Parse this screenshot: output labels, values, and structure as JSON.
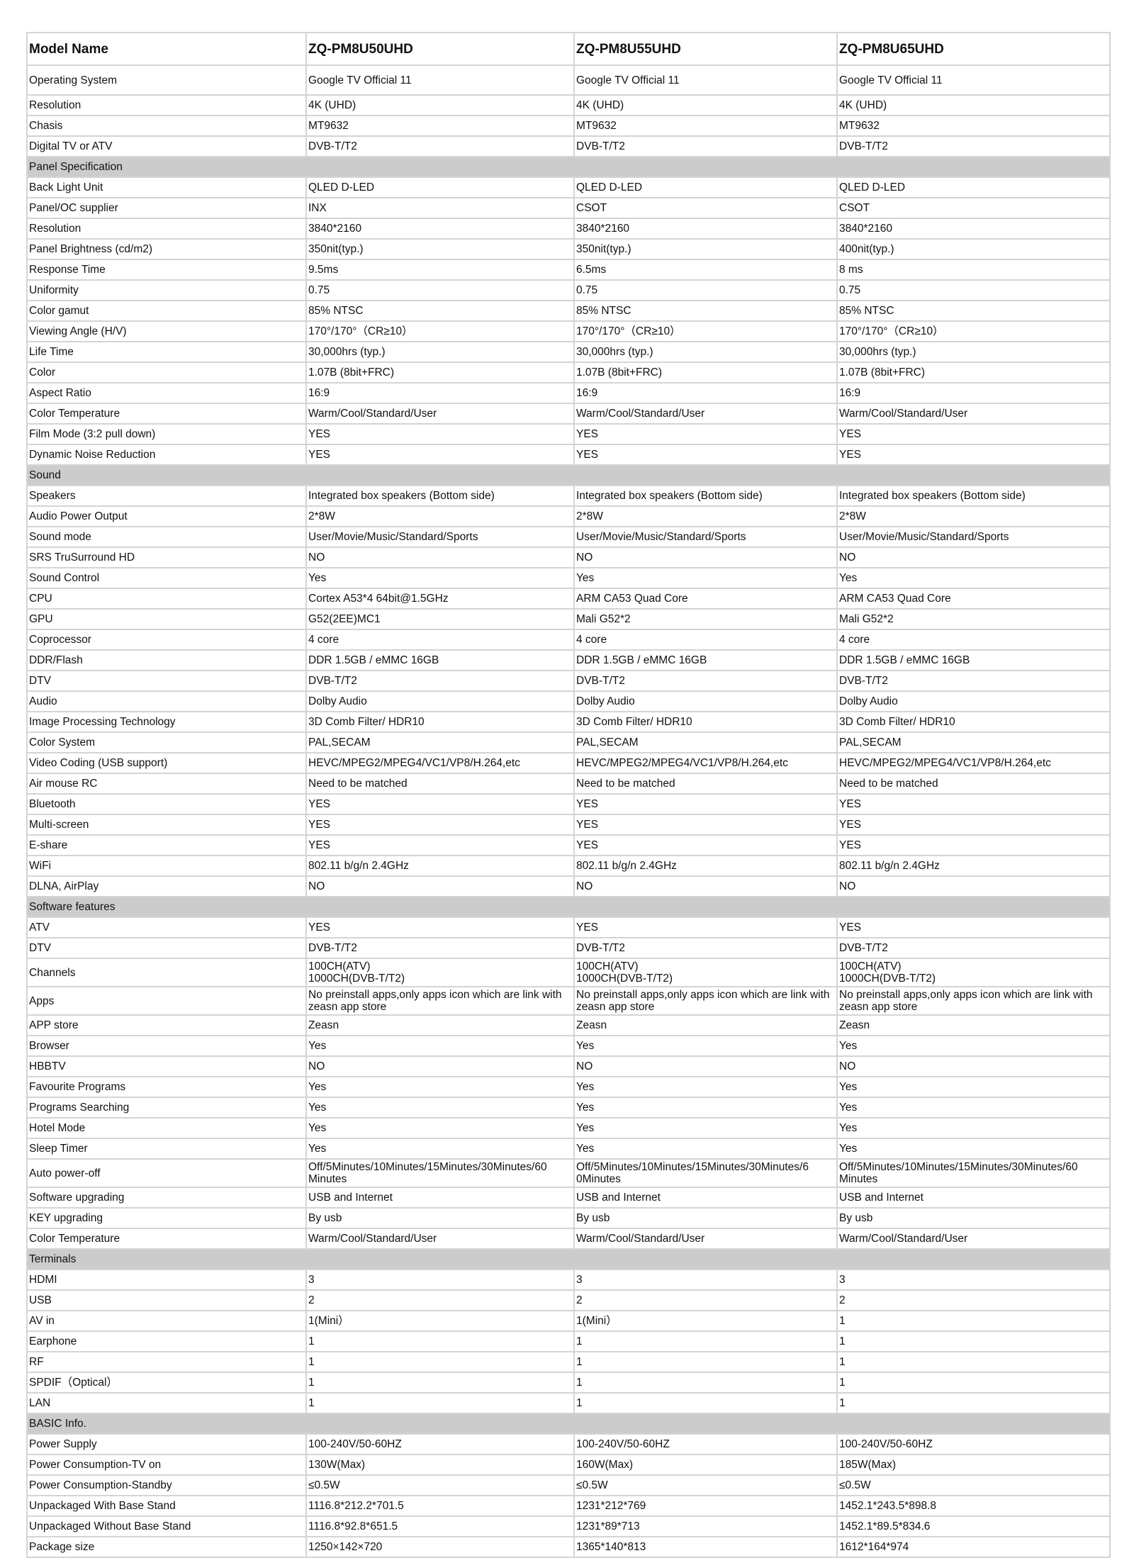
{
  "header": {
    "label": "Model Name",
    "models": [
      "ZQ-PM8U50UHD",
      "ZQ-PM8U55UHD",
      "ZQ-PM8U65UHD"
    ]
  },
  "rows": [
    {
      "label": "Operating System",
      "values": [
        "Google TV Official 11",
        "Google TV Official 11",
        "Google TV Official 11"
      ]
    },
    {
      "label": "Resolution",
      "values": [
        "4K (UHD)",
        "4K (UHD)",
        "4K (UHD)"
      ]
    },
    {
      "label": "Chasis",
      "values": [
        "MT9632",
        "MT9632",
        "MT9632"
      ]
    },
    {
      "label": "Digital TV or ATV",
      "values": [
        "DVB-T/T2",
        "DVB-T/T2",
        "DVB-T/T2"
      ]
    },
    {
      "section": "Panel Specification"
    },
    {
      "label": "Back Light Unit",
      "values": [
        "QLED D-LED",
        "QLED D-LED",
        "QLED D-LED"
      ]
    },
    {
      "label": "Panel/OC supplier",
      "values": [
        "INX",
        "CSOT",
        "CSOT"
      ]
    },
    {
      "label": "Resolution",
      "values": [
        "3840*2160",
        "3840*2160",
        "3840*2160"
      ]
    },
    {
      "label": "Panel Brightness (cd/m2)",
      "values": [
        "350nit(typ.)",
        "350nit(typ.)",
        "400nit(typ.)"
      ]
    },
    {
      "label": "Response Time",
      "values": [
        "9.5ms",
        "6.5ms",
        "8 ms"
      ]
    },
    {
      "label": "Uniformity",
      "values": [
        "0.75",
        "0.75",
        "0.75"
      ]
    },
    {
      "label": "Color gamut",
      "values": [
        "85% NTSC",
        "85% NTSC",
        "85% NTSC"
      ]
    },
    {
      "label": "Viewing Angle (H/V)",
      "values": [
        "170°/170°（CR≥10）",
        "170°/170°（CR≥10）",
        "170°/170°（CR≥10）"
      ]
    },
    {
      "label": "Life Time",
      "values": [
        "30,000hrs (typ.)",
        "30,000hrs (typ.)",
        "30,000hrs (typ.)"
      ]
    },
    {
      "label": "Color",
      "values": [
        "1.07B (8bit+FRC)",
        "1.07B (8bit+FRC)",
        "1.07B (8bit+FRC)"
      ]
    },
    {
      "label": "Aspect Ratio",
      "values": [
        "16:9",
        "16:9",
        "16:9"
      ]
    },
    {
      "label": "Color Temperature",
      "values": [
        "Warm/Cool/Standard/User",
        "Warm/Cool/Standard/User",
        "Warm/Cool/Standard/User"
      ]
    },
    {
      "label": "Film Mode (3:2 pull down)",
      "values": [
        "YES",
        "YES",
        "YES"
      ]
    },
    {
      "label": "Dynamic Noise Reduction",
      "values": [
        "YES",
        "YES",
        "YES"
      ]
    },
    {
      "section": "Sound"
    },
    {
      "label": "Speakers",
      "values": [
        "Integrated box speakers (Bottom side)",
        "Integrated box speakers (Bottom side)",
        "Integrated box speakers (Bottom side)"
      ]
    },
    {
      "label": "Audio Power Output",
      "values": [
        "2*8W",
        "2*8W",
        "2*8W"
      ]
    },
    {
      "label": "Sound mode",
      "values": [
        "User/Movie/Music/Standard/Sports",
        "User/Movie/Music/Standard/Sports",
        "User/Movie/Music/Standard/Sports"
      ]
    },
    {
      "label": "SRS TruSurround HD",
      "values": [
        "NO",
        "NO",
        "NO"
      ]
    },
    {
      "label": "Sound Control",
      "values": [
        "Yes",
        "Yes",
        "Yes"
      ]
    },
    {
      "label": "CPU",
      "values": [
        "Cortex A53*4 64bit@1.5GHz",
        "ARM CA53 Quad Core",
        "ARM CA53 Quad Core"
      ]
    },
    {
      "label": "GPU",
      "values": [
        "G52(2EE)MC1",
        "Mali G52*2",
        "Mali G52*2"
      ]
    },
    {
      "label": "Coprocessor",
      "values": [
        "4 core",
        "4 core",
        "4 core"
      ]
    },
    {
      "label": "DDR/Flash",
      "values": [
        "DDR 1.5GB / eMMC 16GB",
        "DDR 1.5GB / eMMC 16GB",
        "DDR 1.5GB / eMMC 16GB"
      ]
    },
    {
      "label": "DTV",
      "values": [
        "DVB-T/T2",
        "DVB-T/T2",
        "DVB-T/T2"
      ]
    },
    {
      "label": "Audio",
      "values": [
        "Dolby Audio",
        "Dolby Audio",
        "Dolby Audio"
      ]
    },
    {
      "label": "Image Processing Technology",
      "values": [
        "3D Comb Filter/ HDR10",
        "3D Comb Filter/ HDR10",
        "3D Comb Filter/ HDR10"
      ]
    },
    {
      "label": "Color System",
      "values": [
        "PAL,SECAM",
        "PAL,SECAM",
        "PAL,SECAM"
      ]
    },
    {
      "label": "Video Coding (USB support)",
      "values": [
        "HEVC/MPEG2/MPEG4/VC1/VP8/H.264,etc",
        "HEVC/MPEG2/MPEG4/VC1/VP8/H.264,etc",
        "HEVC/MPEG2/MPEG4/VC1/VP8/H.264,etc"
      ]
    },
    {
      "label": "Air mouse RC",
      "values": [
        "Need to be matched",
        "Need to be matched",
        "Need to be matched"
      ]
    },
    {
      "label": "Bluetooth",
      "values": [
        "YES",
        "YES",
        "YES"
      ]
    },
    {
      "label": "Multi-screen",
      "values": [
        "YES",
        "YES",
        "YES"
      ]
    },
    {
      "label": "E-share",
      "values": [
        "YES",
        "YES",
        "YES"
      ]
    },
    {
      "label": "WiFi",
      "values": [
        "802.11 b/g/n 2.4GHz",
        "802.11 b/g/n 2.4GHz",
        "802.11 b/g/n 2.4GHz"
      ]
    },
    {
      "label": "DLNA, AirPlay",
      "values": [
        "NO",
        "NO",
        "NO"
      ]
    },
    {
      "section": "Software features"
    },
    {
      "label": "ATV",
      "values": [
        "YES",
        "YES",
        "YES"
      ]
    },
    {
      "label": "DTV",
      "values": [
        "DVB-T/T2",
        "DVB-T/T2",
        "DVB-T/T2"
      ]
    },
    {
      "label": "Channels",
      "values": [
        "100CH(ATV)\n1000CH(DVB-T/T2)",
        "100CH(ATV)\n1000CH(DVB-T/T2)",
        "100CH(ATV)\n1000CH(DVB-T/T2)"
      ]
    },
    {
      "label": "Apps",
      "values": [
        "No preinstall apps,only apps icon which are link with zeasn app store",
        "No preinstall apps,only apps icon which are link with zeasn app store",
        "No preinstall apps,only apps icon which are link with zeasn app store"
      ]
    },
    {
      "label": "APP store",
      "values": [
        "Zeasn",
        "Zeasn",
        "Zeasn"
      ]
    },
    {
      "label": "Browser",
      "values": [
        "Yes",
        "Yes",
        "Yes"
      ]
    },
    {
      "label": "HBBTV",
      "values": [
        "NO",
        "NO",
        "NO"
      ]
    },
    {
      "label": "Favourite Programs",
      "values": [
        "Yes",
        "Yes",
        "Yes"
      ]
    },
    {
      "label": "Programs Searching",
      "values": [
        "Yes",
        "Yes",
        "Yes"
      ]
    },
    {
      "label": "Hotel Mode",
      "values": [
        "Yes",
        "Yes",
        "Yes"
      ]
    },
    {
      "label": "Sleep Timer",
      "values": [
        "Yes",
        "Yes",
        "Yes"
      ]
    },
    {
      "label": "Auto power-off",
      "values": [
        "Off/5Minutes/10Minutes/15Minutes/30Minutes/60\nMinutes",
        "Off/5Minutes/10Minutes/15Minutes/30Minutes/6\n0Minutes",
        "Off/5Minutes/10Minutes/15Minutes/30Minutes/60\nMinutes"
      ]
    },
    {
      "label": "Software upgrading",
      "values": [
        "USB and Internet",
        "USB and Internet",
        "USB and Internet"
      ]
    },
    {
      "label": "KEY upgrading",
      "values": [
        "By usb",
        "By usb",
        "By usb"
      ]
    },
    {
      "label": "Color Temperature",
      "values": [
        "Warm/Cool/Standard/User",
        "Warm/Cool/Standard/User",
        "Warm/Cool/Standard/User"
      ]
    },
    {
      "section": "Terminals"
    },
    {
      "label": "HDMI",
      "values": [
        "3",
        "3",
        "3"
      ]
    },
    {
      "label": "USB",
      "values": [
        "2",
        "2",
        "2"
      ]
    },
    {
      "label": "AV in",
      "values": [
        "1(Mini）",
        "1(Mini）",
        "1"
      ]
    },
    {
      "label": "Earphone",
      "values": [
        "1",
        "1",
        "1"
      ]
    },
    {
      "label": "RF",
      "values": [
        "1",
        "1",
        "1"
      ]
    },
    {
      "label": "SPDIF（Optical）",
      "values": [
        "1",
        "1",
        "1"
      ]
    },
    {
      "label": "LAN",
      "values": [
        "1",
        "1",
        "1"
      ]
    },
    {
      "section": "BASIC Info."
    },
    {
      "label": "Power Supply",
      "values": [
        "100-240V/50-60HZ",
        "100-240V/50-60HZ",
        "100-240V/50-60HZ"
      ]
    },
    {
      "label": "Power Consumption-TV on",
      "values": [
        "130W(Max)",
        "160W(Max)",
        "185W(Max)"
      ]
    },
    {
      "label": "Power Consumption-Standby",
      "values": [
        "≤0.5W",
        "≤0.5W",
        "≤0.5W"
      ]
    },
    {
      "label": "Unpackaged With Base Stand",
      "values": [
        "1116.8*212.2*701.5",
        "1231*212*769",
        "1452.1*243.5*898.8"
      ]
    },
    {
      "label": "Unpackaged Without Base Stand",
      "values": [
        "1116.8*92.8*651.5",
        "1231*89*713",
        "1452.1*89.5*834.6"
      ]
    },
    {
      "label": "Package size",
      "values": [
        " 1250×142×720",
        "1365*140*813",
        "1612*164*974"
      ]
    }
  ]
}
